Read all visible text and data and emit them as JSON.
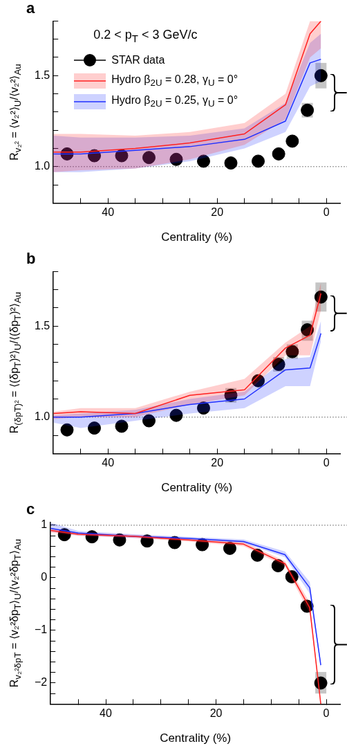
{
  "chart_data": [
    {
      "type": "line",
      "title": "a",
      "xlabel": "Centrality (%)",
      "ylabel": "R$_{v₂²}$ = ⟨v₂²⟩$_{U}$/⟨v₂²⟩$_{Au}$",
      "legend_title": "0.2 < p$_{T}$ < 3 GeV/c",
      "legend": "top left",
      "grid": false,
      "xlim": [
        50,
        -2.5
      ],
      "xticks": [
        {
          "value": 45,
          "label": null
        },
        40,
        {
          "value": 35,
          "label": null
        },
        {
          "value": 30,
          "label": null
        },
        {
          "value": 25,
          "label": null
        },
        20,
        {
          "value": 15,
          "label": null
        },
        {
          "value": 10,
          "label": null
        },
        {
          "value": 5,
          "label": null
        },
        0
      ],
      "ylim": [
        0.8,
        1.8
      ],
      "yticks": [
        {
          "value": 0.8,
          "label": null
        },
        {
          "value": 0.9,
          "label": null
        },
        {
          "value": 1.0,
          "label": "1.0"
        },
        {
          "value": 1.1,
          "label": null
        },
        {
          "value": 1.2,
          "label": null
        },
        {
          "value": 1.3,
          "label": null
        },
        {
          "value": 1.4,
          "label": null
        },
        {
          "value": 1.5,
          "label": "1.5"
        },
        {
          "value": 1.6,
          "label": null
        },
        {
          "value": 1.7,
          "label": null
        },
        {
          "value": 1.8,
          "label": null
        }
      ],
      "ref_lines": [
        {
          "axis": "y",
          "value": 1,
          "color": "#555555",
          "line_style": "dotted"
        }
      ],
      "series": [
        {
          "name": "STAR data",
          "type": "scatter",
          "marker": "circle",
          "color": "#000000",
          "x": [
            47.5,
            42.5,
            37.5,
            32.5,
            27.5,
            22.5,
            17.5,
            12.5,
            8.75,
            6.25,
            3.5,
            1
          ],
          "values": [
            1.07,
            1.06,
            1.06,
            1.05,
            1.04,
            1.03,
            1.02,
            1.03,
            1.07,
            1.14,
            1.31,
            1.5
          ],
          "errors": [
            null,
            null,
            null,
            null,
            null,
            null,
            null,
            null,
            null,
            null,
            [
              1.27,
              1.35
            ],
            [
              1.43,
              1.57
            ]
          ]
        },
        {
          "name": "Hydro β$_{2U}$ = 0.28, γ$_{U}$ = 0°",
          "type": "line",
          "marker": "none",
          "color": "#ff2020",
          "x": [
            50,
            45,
            35,
            25,
            15,
            7.5,
            3,
            1
          ],
          "values": [
            1.08,
            1.08,
            1.1,
            1.13,
            1.18,
            1.34,
            1.73,
            1.8
          ],
          "upper": [
            1.18,
            1.18,
            1.17,
            1.19,
            1.24,
            1.4,
            1.8,
            1.8
          ],
          "lower": [
            0.97,
            0.98,
            0.99,
            1.04,
            1.12,
            1.26,
            1.6,
            1.65
          ]
        },
        {
          "name": "Hydro β$_{2U}$ = 0.25, γ$_{U}$ = 0°",
          "type": "line",
          "marker": "none",
          "color": "#2030ff",
          "x": [
            50,
            45,
            35,
            25,
            15,
            7.5,
            3,
            1
          ],
          "values": [
            1.07,
            1.07,
            1.09,
            1.11,
            1.15,
            1.25,
            1.57,
            1.59
          ],
          "upper": [
            1.17,
            1.16,
            1.16,
            1.17,
            1.21,
            1.35,
            1.68,
            1.73
          ],
          "lower": [
            0.97,
            0.97,
            0.99,
            1.03,
            1.1,
            1.19,
            1.44,
            1.47
          ]
        }
      ]
    },
    {
      "type": "line",
      "title": "b",
      "xlabel": "Centrality (%)",
      "ylabel": "R$_{(δpT)²}$ = ⟨(δp$_{T}$)²⟩$_{U}$/⟨(δp$_{T}$)²⟩$_{Au}$",
      "grid": false,
      "xlim": [
        50,
        -2.5
      ],
      "xticks": [
        {
          "value": 45,
          "label": null
        },
        40,
        {
          "value": 35,
          "label": null
        },
        {
          "value": 30,
          "label": null
        },
        {
          "value": 25,
          "label": null
        },
        20,
        {
          "value": 15,
          "label": null
        },
        {
          "value": 10,
          "label": null
        },
        {
          "value": 5,
          "label": null
        },
        0
      ],
      "ylim": [
        0.8,
        1.8
      ],
      "yticks": [
        {
          "value": 0.8,
          "label": null
        },
        {
          "value": 0.9,
          "label": null
        },
        {
          "value": 1.0,
          "label": "1.0"
        },
        {
          "value": 1.1,
          "label": null
        },
        {
          "value": 1.2,
          "label": null
        },
        {
          "value": 1.3,
          "label": null
        },
        {
          "value": 1.4,
          "label": null
        },
        {
          "value": 1.5,
          "label": "1.5"
        },
        {
          "value": 1.6,
          "label": null
        },
        {
          "value": 1.7,
          "label": null
        },
        {
          "value": 1.8,
          "label": null
        }
      ],
      "ref_lines": [
        {
          "axis": "y",
          "value": 1,
          "color": "#555555",
          "line_style": "dotted"
        }
      ],
      "series": [
        {
          "type": "scatter",
          "marker": "circle",
          "color": "#000000",
          "x": [
            47.5,
            42.5,
            37.5,
            32.5,
            27.5,
            22.5,
            17.5,
            12.5,
            8.75,
            6.25,
            3.5,
            1
          ],
          "values": [
            0.93,
            0.94,
            0.95,
            0.98,
            1.01,
            1.05,
            1.12,
            1.2,
            1.29,
            1.36,
            1.48,
            1.66
          ],
          "errors": [
            null,
            null,
            null,
            null,
            null,
            null,
            [
              1.08,
              1.16
            ],
            null,
            [
              1.25,
              1.33
            ],
            [
              1.32,
              1.4
            ],
            [
              1.42,
              1.53
            ],
            [
              1.58,
              1.74
            ]
          ]
        },
        {
          "type": "line",
          "marker": "none",
          "color": "#ff2020",
          "x": [
            50,
            45,
            35,
            25,
            15,
            7.5,
            3,
            1
          ],
          "values": [
            1.02,
            1.03,
            1.02,
            1.12,
            1.15,
            1.38,
            1.45,
            1.68
          ],
          "upper": [
            1.03,
            1.05,
            1.05,
            1.14,
            1.21,
            1.41,
            1.5,
            1.74
          ],
          "lower": [
            0.99,
            1.0,
            1.0,
            1.07,
            1.12,
            1.34,
            1.34,
            1.59
          ]
        },
        {
          "type": "line",
          "marker": "none",
          "color": "#2030ff",
          "x": [
            50,
            45,
            35,
            25,
            15,
            7.5,
            3,
            1
          ],
          "values": [
            1.0,
            1.0,
            1.02,
            1.07,
            1.1,
            1.26,
            1.27,
            1.46
          ],
          "upper": [
            1.01,
            1.02,
            1.04,
            1.1,
            1.14,
            1.32,
            1.33,
            1.53
          ],
          "lower": [
            0.97,
            0.94,
            0.98,
            1.02,
            1.05,
            1.17,
            1.17,
            1.42
          ]
        }
      ]
    },
    {
      "type": "line",
      "title": "c",
      "xlabel": "Centrality (%)",
      "ylabel": "R$_{v₂²δpT}$ = ⟨v₂²δp$_{T}$⟩$_{U}$/⟨v₂²δp$_{T}$⟩$_{Au}$",
      "grid": false,
      "xlim": [
        50,
        -2.5
      ],
      "xticks": [
        {
          "value": 45,
          "label": null
        },
        40,
        {
          "value": 35,
          "label": null
        },
        {
          "value": 30,
          "label": null
        },
        {
          "value": 25,
          "label": null
        },
        20,
        {
          "value": 15,
          "label": null
        },
        {
          "value": 10,
          "label": null
        },
        {
          "value": 5,
          "label": null
        },
        0
      ],
      "ylim": [
        -2.4,
        1.06
      ],
      "yticks": [
        {
          "value": -2.4,
          "label": null
        },
        {
          "value": -2.2,
          "label": null
        },
        {
          "value": -2,
          "label": "−2"
        },
        {
          "value": -1.8,
          "label": null
        },
        {
          "value": -1.6,
          "label": null
        },
        {
          "value": -1.4,
          "label": null
        },
        {
          "value": -1.2,
          "label": null
        },
        {
          "value": -1,
          "label": "−1"
        },
        {
          "value": -0.8,
          "label": null
        },
        {
          "value": -0.6,
          "label": null
        },
        {
          "value": -0.4,
          "label": null
        },
        {
          "value": -0.2,
          "label": null
        },
        0,
        {
          "value": 0.2,
          "label": null
        },
        {
          "value": 0.4,
          "label": null
        },
        {
          "value": 0.6,
          "label": null
        },
        {
          "value": 0.8,
          "label": null
        },
        1
      ],
      "ref_lines": [
        {
          "axis": "y",
          "value": 1,
          "color": "#555555",
          "line_style": "dotted"
        }
      ],
      "series": [
        {
          "type": "scatter",
          "marker": "circle",
          "color": "#000000",
          "x": [
            47.5,
            42.5,
            37.5,
            32.5,
            27.5,
            22.5,
            17.5,
            12.5,
            8.75,
            6.25,
            3.5,
            1
          ],
          "values": [
            0.82,
            0.78,
            0.72,
            0.7,
            0.67,
            0.63,
            0.56,
            0.43,
            0.23,
            0.02,
            -0.54,
            -2.0
          ],
          "errors": [
            null,
            null,
            null,
            null,
            null,
            null,
            null,
            null,
            null,
            null,
            null,
            [
              -2.2,
              -1.79
            ]
          ]
        },
        {
          "type": "line",
          "marker": "none",
          "color": "#ff2020",
          "x": [
            50,
            45,
            35,
            25,
            15,
            7.5,
            3,
            1
          ],
          "values": [
            0.9,
            0.83,
            0.79,
            0.72,
            0.64,
            0.27,
            -0.57,
            -2.4
          ],
          "upper": [
            0.94,
            0.86,
            0.82,
            0.75,
            0.68,
            0.32,
            -0.47,
            -2.35
          ],
          "lower": [
            0.86,
            0.8,
            0.76,
            0.69,
            0.6,
            0.22,
            -0.67,
            -2.4
          ]
        },
        {
          "type": "line",
          "marker": "none",
          "color": "#2030ff",
          "x": [
            50,
            45,
            35,
            25,
            15,
            7.5,
            3,
            1
          ],
          "values": [
            0.94,
            0.85,
            0.79,
            0.75,
            0.69,
            0.44,
            -0.19,
            -1.66
          ],
          "upper": [
            1.05,
            0.89,
            0.83,
            0.78,
            0.73,
            0.5,
            -0.08,
            -1.6
          ],
          "lower": [
            0.88,
            0.81,
            0.76,
            0.72,
            0.66,
            0.39,
            -0.3,
            -1.72
          ]
        }
      ]
    }
  ]
}
